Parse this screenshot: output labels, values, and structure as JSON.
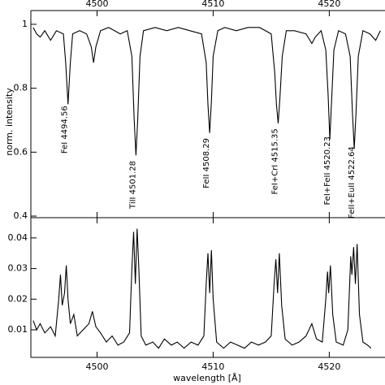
{
  "chart_data": [
    {
      "type": "line",
      "ylabel": "norm. intensity",
      "xlim": [
        4494.3,
        4524.8
      ],
      "xticks": [
        4500,
        4510,
        4520
      ],
      "ylim": [
        0.395,
        1.043
      ],
      "yticks": [
        0.4,
        0.6,
        0.8,
        1
      ],
      "x": [
        4494.5,
        4494.8,
        4495.1,
        4495.5,
        4496.0,
        4496.5,
        4497.1,
        4497.3,
        4497.5,
        4497.7,
        4497.9,
        4498.5,
        4499.1,
        4499.5,
        4499.7,
        4499.9,
        4500.3,
        4501.0,
        4501.5,
        4502.0,
        4502.6,
        4503.0,
        4503.2,
        4503.35,
        4503.5,
        4503.7,
        4504.0,
        4505,
        4506,
        4507,
        4508,
        4509.0,
        4509.4,
        4509.55,
        4509.7,
        4509.85,
        4510.0,
        4510.4,
        4511,
        4512,
        4513,
        4514,
        4515.0,
        4515.3,
        4515.45,
        4515.6,
        4515.75,
        4515.95,
        4516.3,
        4517,
        4518,
        4518.5,
        4518.8,
        4519.3,
        4519.7,
        4519.9,
        4520.05,
        4520.2,
        4520.4,
        4520.8,
        4521.4,
        4521.8,
        4522.0,
        4522.15,
        4522.3,
        4522.5,
        4522.9,
        4523.5,
        4524.0,
        4524.4
      ],
      "series": [
        {
          "color": "#000000",
          "values": [
            0.99,
            0.97,
            0.96,
            0.98,
            0.95,
            0.98,
            0.97,
            0.88,
            0.75,
            0.88,
            0.97,
            0.98,
            0.97,
            0.93,
            0.88,
            0.93,
            0.98,
            0.99,
            0.98,
            0.97,
            0.98,
            0.9,
            0.7,
            0.59,
            0.7,
            0.9,
            0.98,
            0.99,
            0.98,
            0.99,
            0.98,
            0.97,
            0.88,
            0.75,
            0.66,
            0.76,
            0.9,
            0.98,
            0.99,
            0.98,
            0.99,
            0.99,
            0.97,
            0.85,
            0.75,
            0.69,
            0.77,
            0.9,
            0.98,
            0.98,
            0.97,
            0.94,
            0.96,
            0.98,
            0.92,
            0.78,
            0.64,
            0.76,
            0.92,
            0.98,
            0.97,
            0.9,
            0.72,
            0.61,
            0.72,
            0.9,
            0.98,
            0.97,
            0.95,
            0.98
          ]
        }
      ],
      "annotations": [
        {
          "text": "FeI 4494.56",
          "x": 4497.5,
          "y": 0.745
        },
        {
          "text": "TiII 4501.28",
          "x": 4503.35,
          "y": 0.573
        },
        {
          "text": "FeII 4508.29",
          "x": 4509.7,
          "y": 0.644
        },
        {
          "text": "FeI+CrI 4515.35",
          "x": 4515.6,
          "y": 0.674
        },
        {
          "text": "FeI+FeII 4520.23",
          "x": 4520.1,
          "y": 0.649
        },
        {
          "text": "FeII+EuII 4522.64",
          "x": 4522.2,
          "y": 0.618
        }
      ]
    },
    {
      "type": "line",
      "xlabel": "wavelength [Å]",
      "xlim": [
        4494.3,
        4524.8
      ],
      "xticks": [
        4500,
        4510,
        4520
      ],
      "ylim": [
        0.001,
        0.0466
      ],
      "yticks": [
        0.01,
        0.02,
        0.03,
        0.04
      ],
      "x": [
        4494.5,
        4494.8,
        4495.1,
        4495.5,
        4496.0,
        4496.4,
        4496.7,
        4496.85,
        4497.0,
        4497.2,
        4497.35,
        4497.5,
        4497.7,
        4498.0,
        4498.3,
        4498.8,
        4499.3,
        4499.6,
        4499.9,
        4500.3,
        4500.8,
        4501.3,
        4501.8,
        4502.3,
        4502.8,
        4503.0,
        4503.15,
        4503.3,
        4503.45,
        4503.6,
        4503.8,
        4504.2,
        4504.8,
        4505.3,
        4505.8,
        4506.4,
        4506.9,
        4507.5,
        4508.1,
        4508.7,
        4509.2,
        4509.4,
        4509.55,
        4509.7,
        4509.85,
        4510.0,
        4510.3,
        4510.9,
        4511.5,
        4512.1,
        4512.7,
        4513.3,
        4513.9,
        4514.5,
        4515.0,
        4515.25,
        4515.4,
        4515.55,
        4515.7,
        4515.9,
        4516.2,
        4516.8,
        4517.4,
        4518.0,
        4518.5,
        4518.9,
        4519.4,
        4519.7,
        4519.85,
        4519.95,
        4520.1,
        4520.3,
        4520.6,
        4521.2,
        4521.6,
        4521.85,
        4521.95,
        4522.1,
        4522.25,
        4522.4,
        4522.6,
        4522.9,
        4523.3,
        4523.6
      ],
      "series": [
        {
          "color": "#000000",
          "values": [
            0.013,
            0.01,
            0.012,
            0.009,
            0.011,
            0.008,
            0.02,
            0.028,
            0.018,
            0.022,
            0.031,
            0.02,
            0.012,
            0.015,
            0.008,
            0.01,
            0.012,
            0.016,
            0.011,
            0.009,
            0.006,
            0.008,
            0.005,
            0.006,
            0.009,
            0.03,
            0.042,
            0.025,
            0.043,
            0.03,
            0.008,
            0.005,
            0.006,
            0.004,
            0.007,
            0.005,
            0.006,
            0.004,
            0.006,
            0.005,
            0.008,
            0.025,
            0.035,
            0.022,
            0.036,
            0.02,
            0.006,
            0.004,
            0.006,
            0.005,
            0.004,
            0.006,
            0.005,
            0.006,
            0.008,
            0.025,
            0.033,
            0.022,
            0.035,
            0.018,
            0.007,
            0.005,
            0.006,
            0.008,
            0.012,
            0.007,
            0.006,
            0.02,
            0.029,
            0.022,
            0.031,
            0.015,
            0.006,
            0.005,
            0.01,
            0.034,
            0.028,
            0.037,
            0.025,
            0.038,
            0.015,
            0.006,
            0.005,
            0.004
          ]
        }
      ]
    }
  ]
}
